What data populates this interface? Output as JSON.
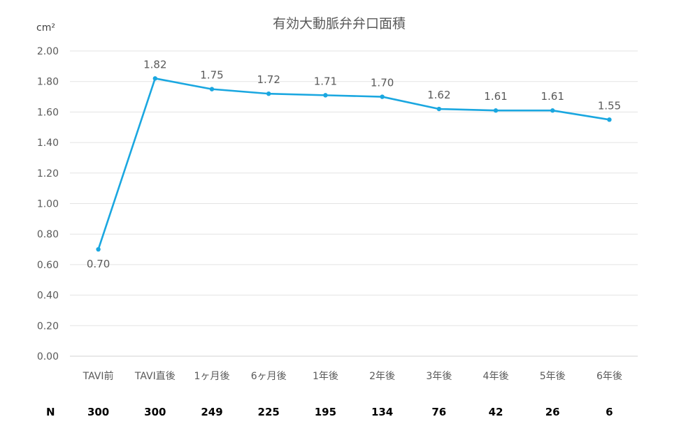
{
  "chart_data": {
    "type": "line",
    "title": "有効大動脈弁弁口面積",
    "unit_label": "cm²",
    "categories": [
      "TAVI前",
      "TAVI直後",
      "1ヶ月後",
      "6ヶ月後",
      "1年後",
      "2年後",
      "3年後",
      "4年後",
      "5年後",
      "6年後"
    ],
    "values": [
      0.7,
      1.82,
      1.75,
      1.72,
      1.71,
      1.7,
      1.62,
      1.61,
      1.61,
      1.55
    ],
    "data_labels": [
      "0.70",
      "1.82",
      "1.75",
      "1.72",
      "1.71",
      "1.70",
      "1.62",
      "1.61",
      "1.61",
      "1.55"
    ],
    "ylim": [
      0,
      2.0
    ],
    "yticks": [
      "0.00",
      "0.20",
      "0.40",
      "0.60",
      "0.80",
      "1.00",
      "1.20",
      "1.40",
      "1.60",
      "1.80",
      "2.00"
    ],
    "grid": true,
    "line_color": "#1aa7e0",
    "n_row": {
      "label": "N",
      "values": [
        "300",
        "300",
        "249",
        "225",
        "195",
        "134",
        "76",
        "42",
        "26",
        "6"
      ]
    }
  }
}
